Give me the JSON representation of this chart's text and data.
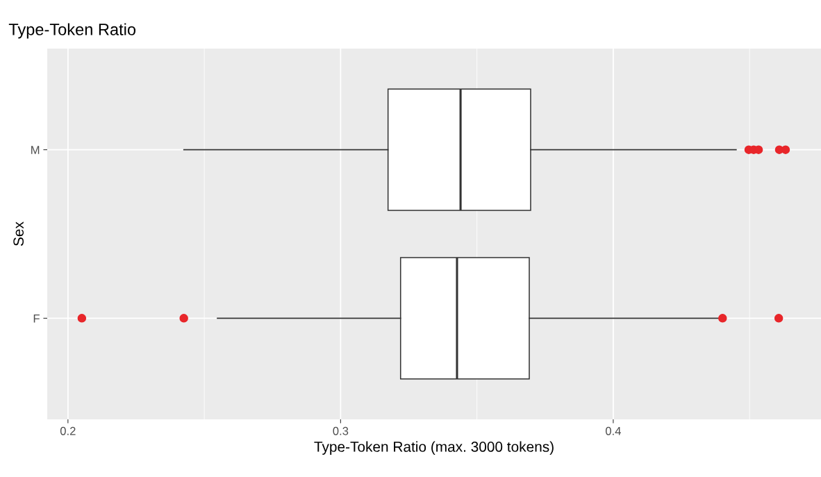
{
  "chart_data": {
    "type": "box",
    "title": "Type-Token Ratio",
    "xlabel": "Type-Token Ratio (max. 3000 tokens)",
    "ylabel": "Sex",
    "orientation": "horizontal",
    "categories": [
      "M",
      "F"
    ],
    "series": [
      {
        "color": "#ffffff",
        "boxes": [
          {
            "low": 0.2425,
            "q1": 0.3174,
            "median": 0.344,
            "q3": 0.3697,
            "high": 0.4451,
            "outliers": [
              0.4497,
              0.4515,
              0.4533,
              0.4609,
              0.4632
            ]
          },
          {
            "low": 0.2548,
            "q1": 0.322,
            "median": 0.3427,
            "q3": 0.3692,
            "high": 0.439,
            "outliers": [
              0.2051,
              0.2425,
              0.4401,
              0.4607
            ]
          }
        ]
      }
    ],
    "xlim": [
      0.1924,
      0.4762
    ],
    "xticks": [
      0.2,
      0.3,
      0.4
    ],
    "grid": true,
    "legend": false
  }
}
